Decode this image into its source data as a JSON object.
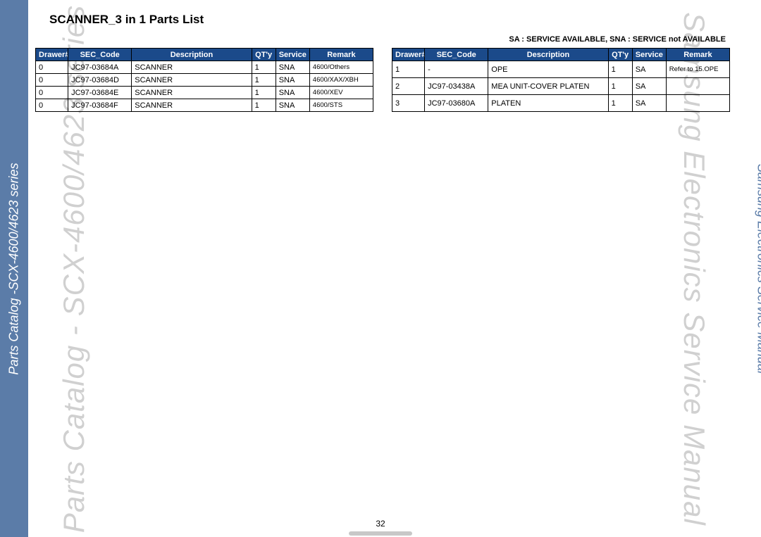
{
  "meta": {
    "page_number": "32",
    "left_sidebar_text": "Parts Catalog -SCX-4600/4623 series",
    "left_watermark": "Parts Catalog - SCX-4600/4623 series",
    "right_sidebar_text": "Samsung Electronics  Service Manual",
    "right_watermark": "Samsung Electronics Service Manual",
    "title": "SCANNER_3 in 1 Parts List",
    "legend": "SA : SERVICE AVAILABLE, SNA : SERVICE not AVAILABLE",
    "header_bg": "#1b4a8a",
    "sidebar_bg": "#5b7ca8"
  },
  "table": {
    "columns": [
      "Drawer#",
      "SEC_Code",
      "Description",
      "QT'y",
      "Service",
      "Remark"
    ],
    "left_rows": [
      [
        "0",
        "JC97-03684A",
        "SCANNER",
        "1",
        "SNA",
        "4600/Others"
      ],
      [
        "0",
        "JC97-03684D",
        "SCANNER",
        "1",
        "SNA",
        "4600/XAX/XBH"
      ],
      [
        "0",
        "JC97-03684E",
        "SCANNER",
        "1",
        "SNA",
        "4600/XEV"
      ],
      [
        "0",
        "JC97-03684F",
        "SCANNER",
        "1",
        "SNA",
        "4600/STS"
      ]
    ],
    "right_rows": [
      [
        "1",
        "-",
        "OPE",
        "1",
        "SA",
        "Refer to 15.OPE"
      ],
      [
        "2",
        "JC97-03438A",
        "MEA UNIT-COVER PLATEN",
        "1",
        "SA",
        ""
      ],
      [
        "3",
        "JC97-03680A",
        "PLATEN",
        "1",
        "SA",
        ""
      ]
    ]
  }
}
